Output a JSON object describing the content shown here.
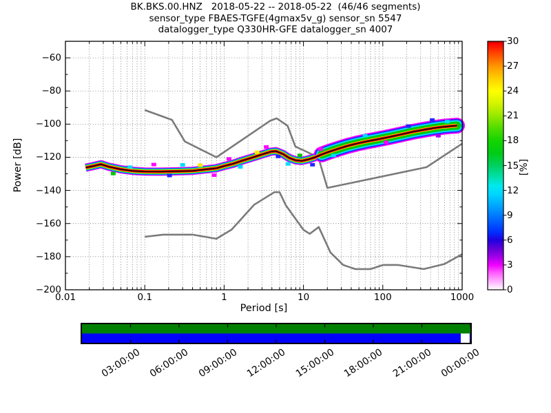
{
  "title": {
    "line1": "BK.BKS.00.HNZ   2018-05-22 -- 2018-05-22  (46/46 segments)",
    "line2": "sensor_type FBAES-TGFE(4gmax5v_g) sensor_sn 5547",
    "line3": "datalogger_type Q330HR-GFE datalogger_sn 4007"
  },
  "axes": {
    "xlabel": "Period [s]",
    "ylabel": "Power [dB]",
    "colorbar_label": "[%]"
  },
  "chart_data": {
    "type": "heatmap",
    "title": "BK.BKS.00.HNZ 2018-05-22 -- 2018-05-22 (46/46 segments) — PPSD probability density",
    "xlabel": "Period [s]",
    "ylabel": "Power [dB]",
    "x_axis": {
      "scale": "log",
      "min": 0.01,
      "max": 1000,
      "ticks": [
        0.01,
        0.1,
        1,
        10,
        100,
        1000
      ],
      "tick_labels": [
        "0.01",
        "0.1",
        "1",
        "10",
        "100",
        "1000"
      ]
    },
    "y_axis": {
      "min": -200,
      "max": -50,
      "ticks": [
        -60,
        -80,
        -100,
        -120,
        -140,
        -160,
        -180,
        -200
      ],
      "tick_labels": [
        "−60",
        "−80",
        "−100",
        "−120",
        "−140",
        "−160",
        "−180",
        "−200"
      ]
    },
    "grid": {
      "style": "dotted",
      "major": true,
      "minor_vertical": true
    },
    "colorbar": {
      "min": 0,
      "max": 30,
      "ticks": [
        0,
        3,
        6,
        9,
        12,
        15,
        18,
        21,
        24,
        27,
        30
      ],
      "colormap_stops": [
        [
          0,
          "#ffffff"
        ],
        [
          1,
          "#ffb0ff"
        ],
        [
          2,
          "#ff60ff"
        ],
        [
          3,
          "#f000ff"
        ],
        [
          4,
          "#a000e8"
        ],
        [
          5,
          "#6000d8"
        ],
        [
          6,
          "#2000e0"
        ],
        [
          7,
          "#0030ff"
        ],
        [
          8.5,
          "#0068ff"
        ],
        [
          10,
          "#00a0ff"
        ],
        [
          11.5,
          "#00d4ff"
        ],
        [
          12.5,
          "#00e8f0"
        ],
        [
          13.5,
          "#00e0b0"
        ],
        [
          15,
          "#00d060"
        ],
        [
          16.5,
          "#00cc14"
        ],
        [
          18,
          "#14d400"
        ],
        [
          19.5,
          "#50dc00"
        ],
        [
          21,
          "#96e800"
        ],
        [
          22.5,
          "#d4f400"
        ],
        [
          24,
          "#ffff00"
        ],
        [
          25.5,
          "#ffd000"
        ],
        [
          27,
          "#ff9600"
        ],
        [
          28.5,
          "#ff4800"
        ],
        [
          29.6,
          "#ff0800"
        ],
        [
          30,
          "#cc0000"
        ]
      ]
    },
    "series": [
      {
        "name": "noise-model-low-NLNM",
        "color": "#7a7a7a",
        "points": [
          [
            0.1,
            -168.0
          ],
          [
            0.17,
            -166.7
          ],
          [
            0.4,
            -166.7
          ],
          [
            0.8,
            -169.2
          ],
          [
            1.24,
            -163.7
          ],
          [
            2.4,
            -148.6
          ],
          [
            4.3,
            -141.1
          ],
          [
            5.0,
            -141.1
          ],
          [
            6.0,
            -149.0
          ],
          [
            10.0,
            -163.8
          ],
          [
            12.0,
            -166.2
          ],
          [
            15.6,
            -162.1
          ],
          [
            21.9,
            -177.5
          ],
          [
            31.6,
            -185.0
          ],
          [
            45.0,
            -187.5
          ],
          [
            70.0,
            -187.5
          ],
          [
            101.0,
            -185.0
          ],
          [
            154.0,
            -185.0
          ],
          [
            328.0,
            -187.5
          ],
          [
            600.0,
            -184.4
          ],
          [
            1000.0,
            -178.5
          ]
        ]
      },
      {
        "name": "noise-model-high-NHNM",
        "color": "#7a7a7a",
        "points": [
          [
            0.1,
            -91.5
          ],
          [
            0.22,
            -97.4
          ],
          [
            0.32,
            -110.5
          ],
          [
            0.8,
            -120.0
          ],
          [
            3.8,
            -98.0
          ],
          [
            4.6,
            -96.5
          ],
          [
            6.3,
            -101.0
          ],
          [
            7.9,
            -113.5
          ],
          [
            15.4,
            -120.0
          ],
          [
            20.0,
            -138.5
          ],
          [
            354.8,
            -126.0
          ],
          [
            1000.0,
            -111.8
          ]
        ]
      },
      {
        "name": "psd-mode-line",
        "color": "#000000",
        "points": [
          [
            0.018,
            -126.3
          ],
          [
            0.022,
            -125.4
          ],
          [
            0.028,
            -124.2
          ],
          [
            0.035,
            -125.7
          ],
          [
            0.05,
            -127.3
          ],
          [
            0.07,
            -128.2
          ],
          [
            0.1,
            -128.6
          ],
          [
            0.16,
            -128.7
          ],
          [
            0.25,
            -128.5
          ],
          [
            0.4,
            -128.2
          ],
          [
            0.6,
            -127.3
          ],
          [
            0.8,
            -126.6
          ],
          [
            1.0,
            -125.3
          ],
          [
            1.3,
            -123.9
          ],
          [
            1.7,
            -122.0
          ],
          [
            2.2,
            -120.4
          ],
          [
            3.0,
            -118.3
          ],
          [
            3.9,
            -116.6
          ],
          [
            4.5,
            -116.3
          ],
          [
            5.5,
            -118.0
          ],
          [
            6.6,
            -120.4
          ],
          [
            8.0,
            -121.9
          ],
          [
            9.5,
            -122.2
          ],
          [
            11.5,
            -121.3
          ],
          [
            14.0,
            -120.0
          ],
          [
            17.0,
            -118.3
          ],
          [
            21.0,
            -116.7
          ],
          [
            27.0,
            -115.0
          ],
          [
            35.0,
            -113.3
          ],
          [
            48.0,
            -111.6
          ],
          [
            65.0,
            -110.3
          ],
          [
            90.0,
            -109.0
          ],
          [
            120.0,
            -107.8
          ],
          [
            170.0,
            -106.2
          ],
          [
            240.0,
            -104.6
          ],
          [
            330.0,
            -103.4
          ],
          [
            450.0,
            -102.3
          ],
          [
            580.0,
            -101.6
          ],
          [
            720.0,
            -101.2
          ],
          [
            860.0,
            -100.9
          ]
        ]
      }
    ],
    "band_colors": {
      "magenta": "#ff00ff",
      "blue": "#2424ff",
      "cyan": "#00dcff",
      "green": "#00c800",
      "yellow": "#ffec00",
      "red": "#e80000",
      "line": "#000000"
    },
    "histogram_speckles": [
      [
        0.04,
        -129.8,
        "#00c800"
      ],
      [
        0.065,
        -126.0,
        "#00dcff"
      ],
      [
        0.13,
        -124.4,
        "#ff00ff"
      ],
      [
        0.205,
        -131.0,
        "#2424ff"
      ],
      [
        0.3,
        -124.6,
        "#00dcff"
      ],
      [
        0.5,
        -124.8,
        "#ffec00"
      ],
      [
        0.75,
        -130.8,
        "#ff00ff"
      ],
      [
        1.15,
        -121.0,
        "#ff00ff"
      ],
      [
        1.6,
        -125.8,
        "#00dcff"
      ],
      [
        2.6,
        -117.0,
        "#ffec00"
      ],
      [
        3.4,
        -113.8,
        "#ff00ff"
      ],
      [
        4.8,
        -119.5,
        "#2424ff"
      ],
      [
        6.4,
        -124.0,
        "#00dcff"
      ],
      [
        9.0,
        -118.9,
        "#00c800"
      ],
      [
        13.0,
        -124.5,
        "#2424ff"
      ],
      [
        16.5,
        -115.2,
        "#ff00ff"
      ],
      [
        24.0,
        -118.9,
        "#00dcff"
      ],
      [
        60.0,
        -107.0,
        "#00dcff"
      ],
      [
        110.0,
        -111.0,
        "#ff00ff"
      ],
      [
        210.0,
        -101.2,
        "#2424ff"
      ],
      [
        420.0,
        -97.5,
        "#2424ff"
      ],
      [
        500.0,
        -107.0,
        "#aa00ee"
      ],
      [
        650.0,
        -98.5,
        "#00dcff"
      ]
    ],
    "coverage_bar": {
      "top_row_color": "#008000",
      "bottom_row_color": "#0000ff",
      "gap_fraction": [
        0.9751,
        0.998
      ],
      "time_tick_hours": [
        3,
        6,
        9,
        12,
        15,
        18,
        21,
        24
      ],
      "time_tick_labels": [
        "03:00:00",
        "06:00:00",
        "09:00:00",
        "12:00:00",
        "15:00:00",
        "18:00:00",
        "21:00:00",
        "00:00:00"
      ]
    }
  }
}
